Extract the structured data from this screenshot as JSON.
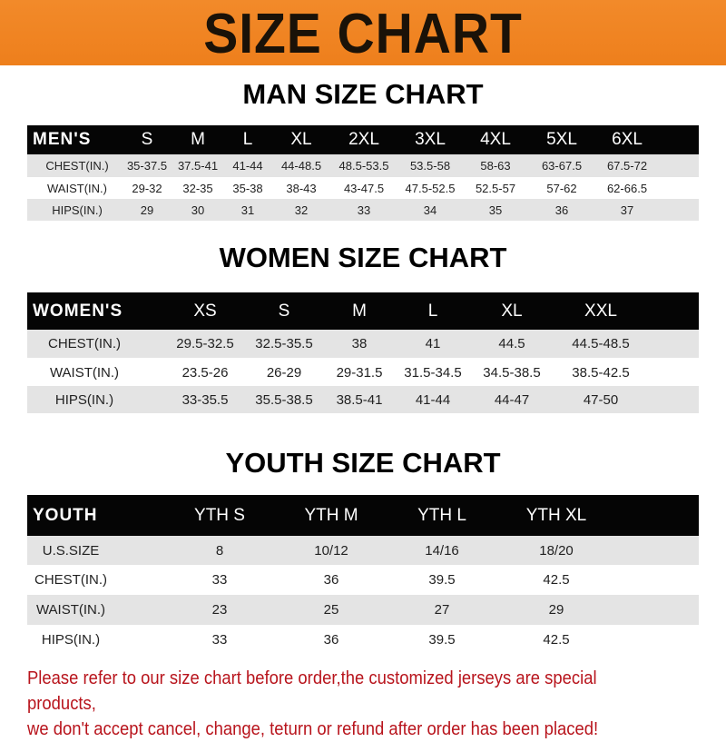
{
  "banner": {
    "title": "SIZE CHART",
    "color": "#f08424"
  },
  "men": {
    "title": "MAN SIZE CHART",
    "header": [
      "MEN'S",
      "S",
      "M",
      "L",
      "XL",
      "2XL",
      "3XL",
      "4XL",
      "5XL",
      "6XL"
    ],
    "rows": [
      [
        "CHEST(IN.)",
        "35-37.5",
        "37.5-41",
        "41-44",
        "44-48.5",
        "48.5-53.5",
        "53.5-58",
        "58-63",
        "63-67.5",
        "67.5-72"
      ],
      [
        "WAIST(IN.)",
        "29-32",
        "32-35",
        "35-38",
        "38-43",
        "43-47.5",
        "47.5-52.5",
        "52.5-57",
        "57-62",
        "62-66.5"
      ],
      [
        "HIPS(IN.)",
        "29",
        "30",
        "31",
        "32",
        "33",
        "34",
        "35",
        "36",
        "37"
      ]
    ]
  },
  "women": {
    "title": "WOMEN SIZE CHART",
    "header": [
      "WOMEN'S",
      "XS",
      "S",
      "M",
      "L",
      "XL",
      "XXL"
    ],
    "rows": [
      [
        "CHEST(IN.)",
        "29.5-32.5",
        "32.5-35.5",
        "38",
        "41",
        "44.5",
        "44.5-48.5"
      ],
      [
        "WAIST(IN.)",
        "23.5-26",
        "26-29",
        "29-31.5",
        "31.5-34.5",
        "34.5-38.5",
        "38.5-42.5"
      ],
      [
        "HIPS(IN.)",
        "33-35.5",
        "35.5-38.5",
        "38.5-41",
        "41-44",
        "44-47",
        "47-50"
      ]
    ]
  },
  "youth": {
    "title": "YOUTH SIZE CHART",
    "header": [
      "YOUTH",
      "YTH S",
      "YTH M",
      "YTH L",
      "YTH XL"
    ],
    "rows": [
      [
        "U.S.SIZE",
        "8",
        "10/12",
        "14/16",
        "18/20"
      ],
      [
        "CHEST(IN.)",
        "33",
        "36",
        "39.5",
        "42.5"
      ],
      [
        "WAIST(IN.)",
        "23",
        "25",
        "27",
        "29"
      ],
      [
        "HIPS(IN.)",
        "33",
        "36",
        "39.5",
        "42.5"
      ]
    ]
  },
  "notice": {
    "line1": "Please refer to our size chart before order,the customized jerseys are special products,",
    "line2": "we don't accept cancel, change, teturn or refund after order has been placed!",
    "color": "#b8141c"
  }
}
